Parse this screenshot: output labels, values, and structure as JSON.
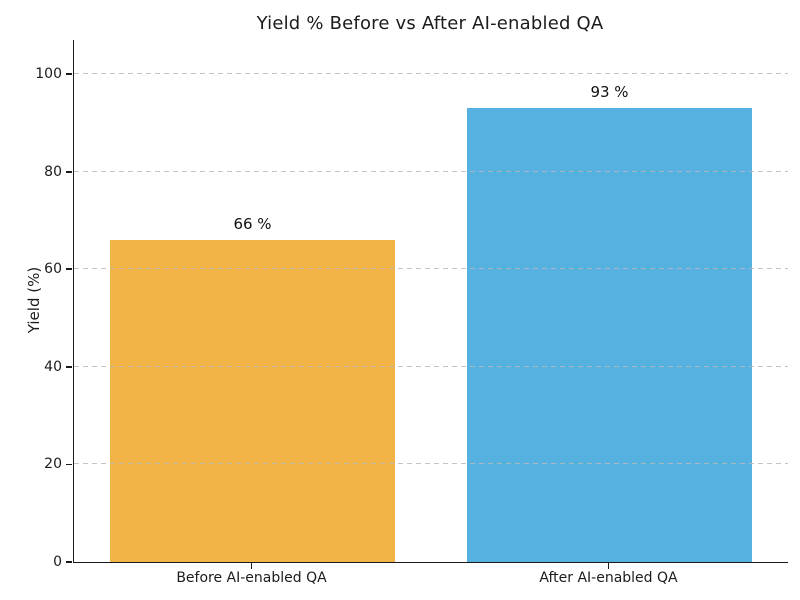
{
  "chart_data": {
    "type": "bar",
    "title": "Yield % Before vs After AI-enabled QA",
    "xlabel": "",
    "ylabel": "Yield (%)",
    "categories": [
      "Before AI-enabled QA",
      "After AI-enabled QA"
    ],
    "values": [
      66,
      93
    ],
    "value_labels": [
      "66 %",
      "93 %"
    ],
    "bar_colors": [
      "#F2B447",
      "#55B1DF"
    ],
    "yticks": [
      0,
      20,
      40,
      60,
      80,
      100
    ],
    "ylim": [
      0,
      107
    ],
    "grid": "horizontal-dashed",
    "grid_color": "#BDBDBD",
    "legend_position": "none",
    "spine_color": "#1A1A1A",
    "background_color": "#FFFFFF"
  }
}
